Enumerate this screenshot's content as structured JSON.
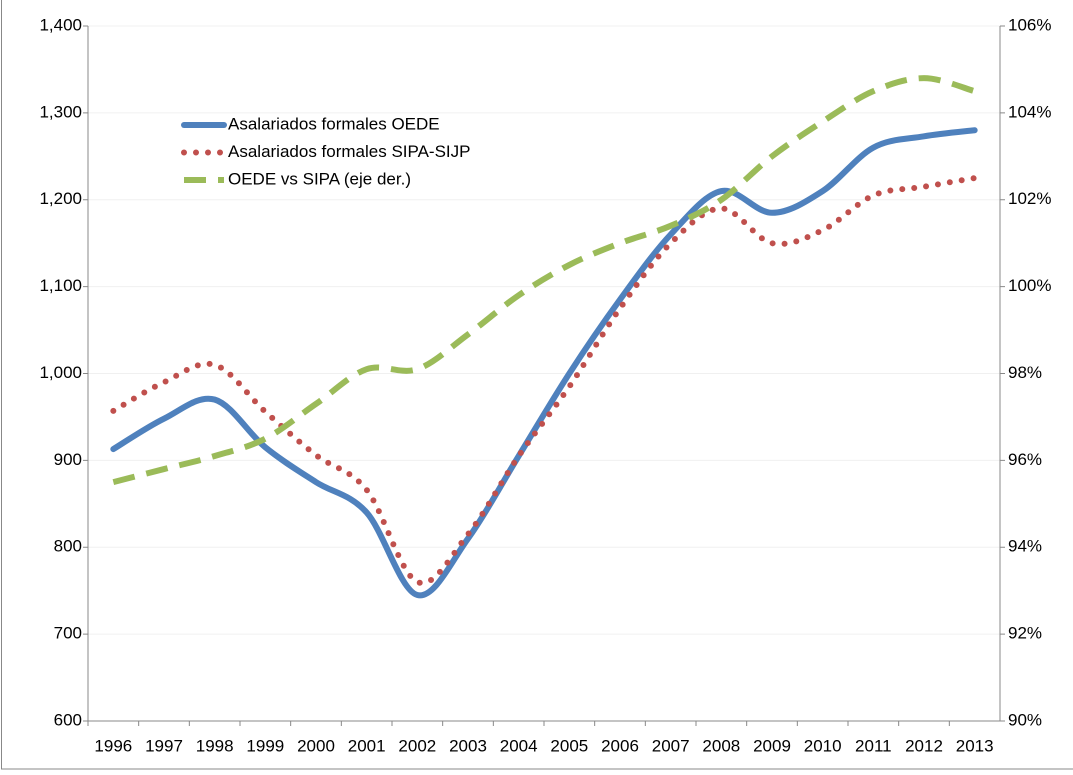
{
  "chart_data": {
    "type": "line",
    "categories": [
      "1996",
      "1997",
      "1998",
      "1999",
      "2000",
      "2001",
      "2002",
      "2003",
      "2004",
      "2005",
      "2006",
      "2007",
      "2008",
      "2009",
      "2010",
      "2011",
      "2012",
      "2013"
    ],
    "series": [
      {
        "name": "Asalariados formales OEDE",
        "color": "#4f81bd",
        "style": "solid",
        "values": [
          913,
          948,
          970,
          915,
          875,
          840,
          745,
          810,
          905,
          1000,
          1085,
          1160,
          1210,
          1185,
          1210,
          1260,
          1273,
          1280
        ]
      },
      {
        "name": "Asalariados formales SIPA-SIJP",
        "color": "#c0504d",
        "style": "dotted",
        "values": [
          957,
          990,
          1010,
          956,
          906,
          866,
          760,
          815,
          905,
          985,
          1075,
          1150,
          1190,
          1150,
          1165,
          1205,
          1215,
          1225
        ]
      },
      {
        "name": "OEDE vs SIPA (eje der.)",
        "color": "#9bbb59",
        "style": "dashed",
        "axis": "y2",
        "values": [
          95.5,
          95.8,
          96.1,
          96.5,
          97.3,
          98.1,
          98.1,
          98.9,
          99.8,
          100.5,
          101.0,
          101.4,
          102.0,
          103.0,
          103.8,
          104.5,
          104.8,
          104.5
        ]
      }
    ],
    "ylim": [
      600,
      1400
    ],
    "yticks": [
      600,
      700,
      800,
      900,
      {
        "value": 1000,
        "label": "1,000"
      },
      {
        "value": 1100,
        "label": "1,100"
      },
      {
        "value": 1200,
        "label": "1,200"
      },
      {
        "value": 1300,
        "label": "1,300"
      },
      {
        "value": 1400,
        "label": "1,400"
      }
    ],
    "y2lim": [
      90,
      106
    ],
    "y2ticks": [
      {
        "value": 90,
        "label": "90%"
      },
      {
        "value": 92,
        "label": "92%"
      },
      {
        "value": 94,
        "label": "94%"
      },
      {
        "value": 96,
        "label": "96%"
      },
      {
        "value": 98,
        "label": "98%"
      },
      {
        "value": 100,
        "label": "100%"
      },
      {
        "value": 102,
        "label": "102%"
      },
      {
        "value": 104,
        "label": "104%"
      },
      {
        "value": 106,
        "label": "106%"
      }
    ],
    "grid": true
  }
}
